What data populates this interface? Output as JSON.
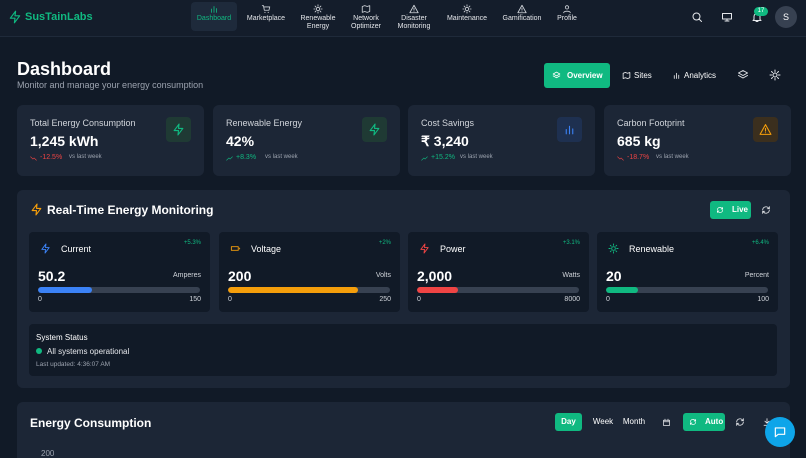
{
  "brand": "SusTainLabs",
  "nav": [
    "Dashboard",
    "Marketplace",
    "Renewable Energy",
    "Network Optimizer",
    "Disaster Monitoring",
    "Maintenance",
    "Gamification",
    "Profile"
  ],
  "notification_count": "17",
  "avatar": "S",
  "header": {
    "title": "Dashboard",
    "subtitle": "Monitor and manage your energy consumption"
  },
  "tabs": [
    "Overview",
    "Sites",
    "Analytics"
  ],
  "kpis": [
    {
      "label": "Total Energy Consumption",
      "value": "1,245 kWh",
      "change": "-12.5%",
      "note": "vs last week"
    },
    {
      "label": "Renewable Energy",
      "value": "42%",
      "change": "+8.3%",
      "note": "vs last week"
    },
    {
      "label": "Cost Savings",
      "value": "₹ 3,240",
      "change": "+15.2%",
      "note": "vs last week"
    },
    {
      "label": "Carbon Footprint",
      "value": "685 kg",
      "change": "-18.7%",
      "note": "vs last week"
    }
  ],
  "realtime": {
    "title": "Real-Time Energy Monitoring",
    "live": "Live",
    "metrics": [
      {
        "name": "Current",
        "change": "+5.3%",
        "value": 50.2,
        "unit": "Amperes",
        "min": 0,
        "max": 150,
        "color": "#3b82f6"
      },
      {
        "name": "Voltage",
        "change": "+2%",
        "value": 200,
        "unit": "Volts",
        "min": 0,
        "max": 250,
        "color": "#f59e0b"
      },
      {
        "name": "Power",
        "change": "+3.1%",
        "value": 2000,
        "value_label": "2,000",
        "unit": "Watts",
        "min": 0,
        "max": 8000,
        "color": "#ef4444"
      },
      {
        "name": "Renewable",
        "change": "+6.4%",
        "value": 20,
        "unit": "Percent",
        "min": 0,
        "max": 100,
        "color": "#10b981"
      }
    ],
    "status": {
      "title": "System Status",
      "text": "All systems operational",
      "updated": "Last updated: 4:36:07 AM"
    }
  },
  "consumption": {
    "title": "Energy Consumption",
    "ranges": [
      "Day",
      "Week",
      "Month"
    ],
    "auto": "Auto",
    "yticks": [
      200
    ]
  }
}
